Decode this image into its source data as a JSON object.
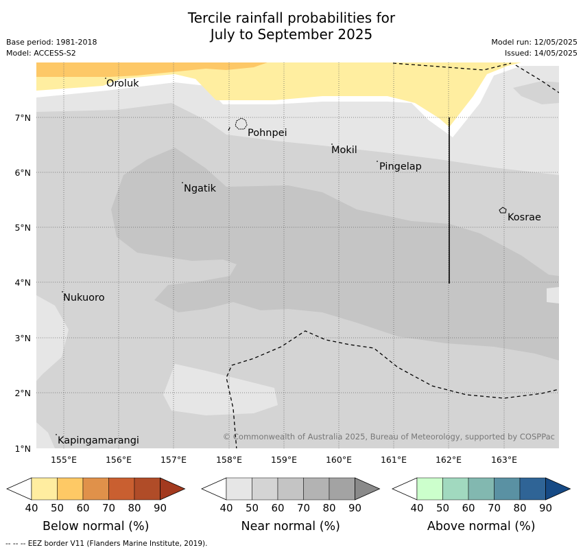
{
  "header": {
    "title_line1": "Tercile rainfall probabilities for",
    "title_line2": "July to September 2025",
    "base_period": "Base period: 1981-2018",
    "model": "Model: ACCESS-S2",
    "model_run": "Model run: 12/05/2025",
    "issued": "Issued: 14/05/2025"
  },
  "map": {
    "lon_labels": [
      "155°E",
      "156°E",
      "157°E",
      "158°E",
      "159°E",
      "160°E",
      "161°E",
      "162°E",
      "163°E"
    ],
    "lat_labels": [
      "7°N",
      "6°N",
      "5°N",
      "4°N",
      "3°N",
      "2°N",
      "1°N"
    ],
    "places": [
      "Oroluk",
      "Pohnpei",
      "Mokil",
      "Pingelap",
      "Ngatik",
      "Kosrae",
      "Nukuoro",
      "Kapingamarangi"
    ],
    "copyright": "© Commonwealth of Australia 2025, Bureau of Meteorology, supported by COSPPac",
    "colors": {
      "near_40": "#e6e6e6",
      "near_50": "#d4d4d4",
      "near_60": "#c5c5c5",
      "below_40": "#ffeea0",
      "below_50": "#fdc867"
    }
  },
  "legends": [
    {
      "label": "Below normal (%)",
      "ticks": [
        "40",
        "50",
        "60",
        "70",
        "80",
        "90"
      ],
      "colors": [
        "#ffffff",
        "#ffeda0",
        "#fec965",
        "#e0914a",
        "#c95f30",
        "#b04c28",
        "#a33a1f"
      ]
    },
    {
      "label": "Near normal (%)",
      "ticks": [
        "40",
        "50",
        "60",
        "70",
        "80",
        "90"
      ],
      "colors": [
        "#ffffff",
        "#e6e6e6",
        "#d4d4d4",
        "#c4c4c4",
        "#b3b3b3",
        "#a3a3a3",
        "#8a8a8a"
      ]
    },
    {
      "label": "Above normal (%)",
      "ticks": [
        "40",
        "50",
        "60",
        "70",
        "80",
        "90"
      ],
      "colors": [
        "#ffffff",
        "#ccffcc",
        "#a1d9bf",
        "#82b8b0",
        "#5a91a3",
        "#2f6496",
        "#164a85"
      ]
    }
  ],
  "footnote": "--  --  -- EEZ border V11 (Flanders Marine Institute, 2019)."
}
